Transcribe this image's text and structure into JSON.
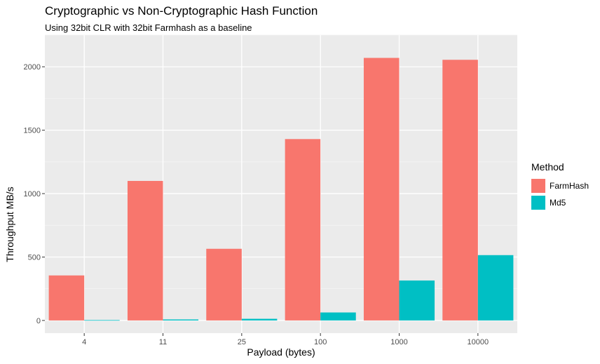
{
  "title": "Cryptographic vs Non-Cryptographic Hash Function",
  "subtitle": "Using 32bit CLR with 32bit Farmhash as a baseline",
  "legend": {
    "title": "Method",
    "items": [
      {
        "label": "FarmHash",
        "color": "#F8766D"
      },
      {
        "label": "Md5",
        "color": "#00BFC4"
      }
    ]
  },
  "chart_data": {
    "type": "bar",
    "title": "Cryptographic vs Non-Cryptographic Hash Function",
    "subtitle": "Using 32bit CLR with 32bit Farmhash as a baseline",
    "xlabel": "Payload (bytes)",
    "ylabel": "Throughput MB/s",
    "categories": [
      "4",
      "11",
      "25",
      "100",
      "1000",
      "10000"
    ],
    "series": [
      {
        "name": "FarmHash",
        "color": "#F8766D",
        "values": [
          355,
          1100,
          565,
          1430,
          2070,
          2055
        ]
      },
      {
        "name": "Md5",
        "color": "#00BFC4",
        "values": [
          3,
          8,
          13,
          63,
          315,
          515
        ]
      }
    ],
    "ylim": [
      -100,
      2250
    ],
    "yticks": [
      0,
      500,
      1000,
      1500,
      2000
    ],
    "grid": true,
    "legend_position": "right"
  }
}
